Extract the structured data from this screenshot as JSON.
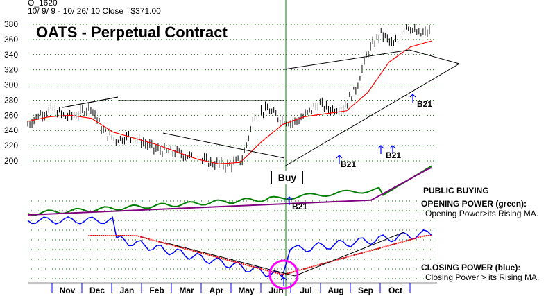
{
  "header": {
    "symbol": "O_1620",
    "range_and_close": "10/ 9/ 9 -  10/ 26/ 10   Close= $371.00"
  },
  "chart_title": "OATS - Perpetual Contract",
  "buy_label": "Buy",
  "signals": [
    "B21",
    "B21",
    "B21",
    "B21",
    "B21"
  ],
  "notes": {
    "public_buying": "PUBLIC BUYING",
    "opening_power_title": "OPENING POWER (green):",
    "opening_power_desc": "Opening Power>its Rising MA.",
    "closing_power_title": "CLOSING POWER (blue):",
    "closing_power_desc": "Closing Power > its Rising MA."
  },
  "colors": {
    "price_bars": "#000000",
    "moving_average": "#ff0000",
    "opening_power": "#008000",
    "opening_power_ma": "#800080",
    "closing_power": "#0000ff",
    "closing_power_ma": "#ff0000",
    "grid": "#008000",
    "buy_marker": "#ff00ff",
    "signal_arrows": "#0000ff"
  },
  "chart_data": {
    "type": "line",
    "title": "OATS - Perpetual Contract",
    "ylim": [
      180,
      390
    ],
    "y_ticks": [
      200,
      220,
      240,
      260,
      280,
      300,
      320,
      340,
      360,
      380
    ],
    "x_labels": [
      "Nov",
      "Dec",
      "Jan",
      "Feb",
      "Mar",
      "Apr",
      "May",
      "Jun",
      "Jul",
      "Aug",
      "Sep",
      "Oct"
    ],
    "grid": true,
    "close": 371.0,
    "price_series": {
      "name": "Close",
      "points": [
        [
          "Oct",
          248
        ],
        [
          "Nov",
          262
        ],
        [
          "Nov",
          268
        ],
        [
          "Dec",
          258
        ],
        [
          "Dec",
          262
        ],
        [
          "Jan",
          272
        ],
        [
          "Jan",
          238
        ],
        [
          "Jan",
          228
        ],
        [
          "Feb",
          232
        ],
        [
          "Feb",
          226
        ],
        [
          "Mar",
          216
        ],
        [
          "Mar",
          212
        ],
        [
          "Apr",
          210
        ],
        [
          "Apr",
          205
        ],
        [
          "May",
          200
        ],
        [
          "May",
          196
        ],
        [
          "May",
          194
        ],
        [
          "Jun",
          202
        ],
        [
          "Jun",
          262
        ],
        [
          "Jun",
          268
        ],
        [
          "Jul",
          255
        ],
        [
          "Jul",
          250
        ],
        [
          "Jul",
          260
        ],
        [
          "Aug",
          275
        ],
        [
          "Aug",
          268
        ],
        [
          "Aug",
          270
        ],
        [
          "Sep",
          295
        ],
        [
          "Sep",
          345
        ],
        [
          "Sep",
          368
        ],
        [
          "Sep",
          352
        ],
        [
          "Oct",
          380
        ],
        [
          "Oct",
          366
        ],
        [
          "Oct",
          371
        ]
      ]
    },
    "moving_average_points": [
      [
        "Oct",
        252
      ],
      [
        "Nov",
        258
      ],
      [
        "Dec",
        260
      ],
      [
        "Jan",
        256
      ],
      [
        "Jan",
        238
      ],
      [
        "Feb",
        230
      ],
      [
        "Mar",
        222
      ],
      [
        "Apr",
        212
      ],
      [
        "May",
        202
      ],
      [
        "May",
        196
      ],
      [
        "Jun",
        198
      ],
      [
        "Jun",
        225
      ],
      [
        "Jul",
        248
      ],
      [
        "Jul",
        258
      ],
      [
        "Aug",
        262
      ],
      [
        "Aug",
        266
      ],
      [
        "Sep",
        290
      ],
      [
        "Sep",
        330
      ],
      [
        "Oct",
        350
      ],
      [
        "Oct",
        358
      ]
    ],
    "signals": [
      {
        "label": "B21",
        "month": "Jun",
        "price": 186
      },
      {
        "label": "B21",
        "month": "Aug",
        "price": 198
      },
      {
        "label": "B21",
        "month": "Sep",
        "price": 215
      },
      {
        "label": "B21",
        "month": "Sep",
        "price": 215
      },
      {
        "label": "B21",
        "month": "Sep",
        "price": 280
      }
    ],
    "buy_marker": {
      "label": "Buy",
      "month": "Jun"
    }
  }
}
